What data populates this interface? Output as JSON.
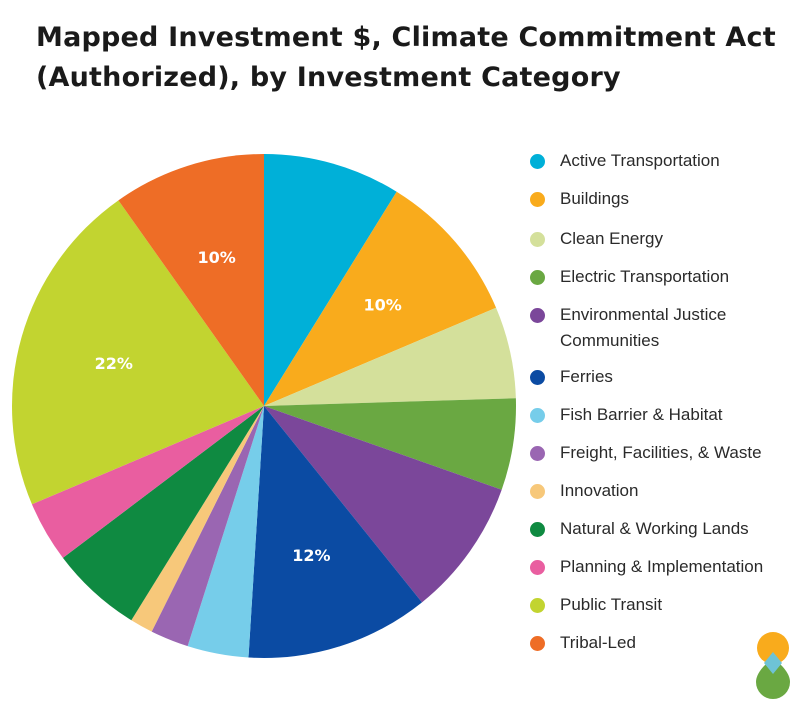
{
  "title_line1": "Mapped Investment $, Climate Commitment Act",
  "title_line2": "(Authorized), by Investment Category",
  "chart_data": {
    "type": "pie",
    "title": "Mapped Investment $, Climate Commitment Act (Authorized), by Investment Category",
    "unit": "%",
    "legend_position": "right",
    "slices": [
      {
        "name": "Active Transportation",
        "value": 9,
        "color": "#00b0d8",
        "label": ""
      },
      {
        "name": "Buildings",
        "value": 10,
        "color": "#f9ab1c",
        "label": "10%"
      },
      {
        "name": "Clean Energy",
        "value": 6,
        "color": "#d4e09b",
        "label": ""
      },
      {
        "name": "Electric Transportation",
        "value": 6,
        "color": "#6aa842",
        "label": ""
      },
      {
        "name": "Environmental Justice Communities",
        "value": 9,
        "color": "#7b479a",
        "label": ""
      },
      {
        "name": "Ferries",
        "value": 12,
        "color": "#0b4ba3",
        "label": "12%"
      },
      {
        "name": "Fish Barrier & Habitat",
        "value": 4,
        "color": "#76cdea",
        "label": ""
      },
      {
        "name": "Freight, Facilities, & Waste",
        "value": 2.5,
        "color": "#9a66b2",
        "label": ""
      },
      {
        "name": "Innovation",
        "value": 1.5,
        "color": "#f7c87a",
        "label": ""
      },
      {
        "name": "Natural & Working Lands",
        "value": 6,
        "color": "#0f8a41",
        "label": ""
      },
      {
        "name": "Planning & Implementation",
        "value": 4,
        "color": "#e95ea0",
        "label": ""
      },
      {
        "name": "Public Transit",
        "value": 22,
        "color": "#c2d430",
        "label": "22%"
      },
      {
        "name": "Tribal-Led",
        "value": 10,
        "color": "#ee6d26",
        "label": "10%"
      }
    ]
  },
  "legend": {
    "items": [
      {
        "label": "Active Transportation",
        "color": "#00b0d8"
      },
      {
        "label": "Buildings",
        "color": "#f9ab1c"
      },
      {
        "label": "Clean Energy",
        "color": "#d4e09b"
      },
      {
        "label": "Electric Transportation",
        "color": "#6aa842"
      },
      {
        "label": "Environmental Justice Communities",
        "color": "#7b479a"
      },
      {
        "label": "Ferries",
        "color": "#0b4ba3"
      },
      {
        "label": "Fish Barrier & Habitat",
        "color": "#76cdea"
      },
      {
        "label": "Freight, Facilities, & Waste",
        "color": "#9a66b2"
      },
      {
        "label": "Innovation",
        "color": "#f7c87a"
      },
      {
        "label": "Natural & Working Lands",
        "color": "#0f8a41"
      },
      {
        "label": "Planning & Implementation",
        "color": "#e95ea0"
      },
      {
        "label": "Public Transit",
        "color": "#c2d430"
      },
      {
        "label": "Tribal-Led",
        "color": "#ee6d26"
      }
    ]
  },
  "logo": {
    "icon": "droplet-logo-icon",
    "colors": [
      "#f9ab1c",
      "#6aa842",
      "#6ec3d6"
    ]
  }
}
